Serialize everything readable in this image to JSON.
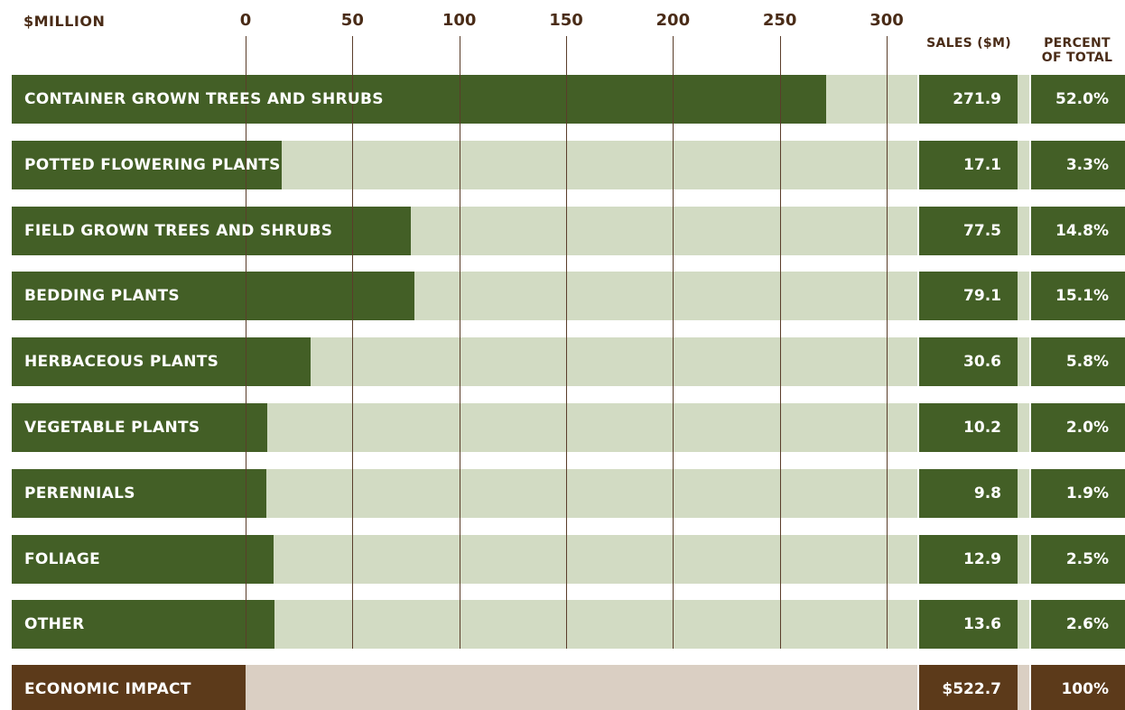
{
  "chart_data": {
    "type": "bar",
    "axis_unit": "$MILLION",
    "xlim": [
      0,
      300
    ],
    "ticks": [
      0,
      50,
      100,
      150,
      200,
      250,
      300
    ],
    "grid": true,
    "columns": {
      "sales": "SALES ($M)",
      "percent_line1": "PERCENT",
      "percent_line2": "OF TOTAL"
    },
    "categories": [
      "CONTAINER GROWN TREES AND SHRUBS",
      "POTTED FLOWERING PLANTS",
      "FIELD GROWN TREES AND SHRUBS",
      "BEDDING PLANTS",
      "HERBACEOUS PLANTS",
      "VEGETABLE PLANTS",
      "PERENNIALS",
      "FOLIAGE",
      "OTHER"
    ],
    "values": [
      271.9,
      17.1,
      77.5,
      79.1,
      30.6,
      10.2,
      9.8,
      12.9,
      13.6
    ],
    "sales_labels": [
      "271.9",
      "17.1",
      "77.5",
      "79.1",
      "30.6",
      "10.2",
      "9.8",
      "12.9",
      "13.6"
    ],
    "percent_labels": [
      "52.0%",
      "3.3%",
      "14.8%",
      "15.1%",
      "5.8%",
      "2.0%",
      "1.9%",
      "2.5%",
      "2.6%"
    ],
    "total": {
      "label": "ECONOMIC IMPACT",
      "sales": "$522.7",
      "percent": "100%"
    },
    "colors": {
      "bar": "#435f26",
      "track": "#d2dbc3",
      "total_bar": "#5c3a1a",
      "total_track": "#dacfc3",
      "axis_text": "#4a2c17",
      "grid": "#5a3d2a"
    }
  }
}
